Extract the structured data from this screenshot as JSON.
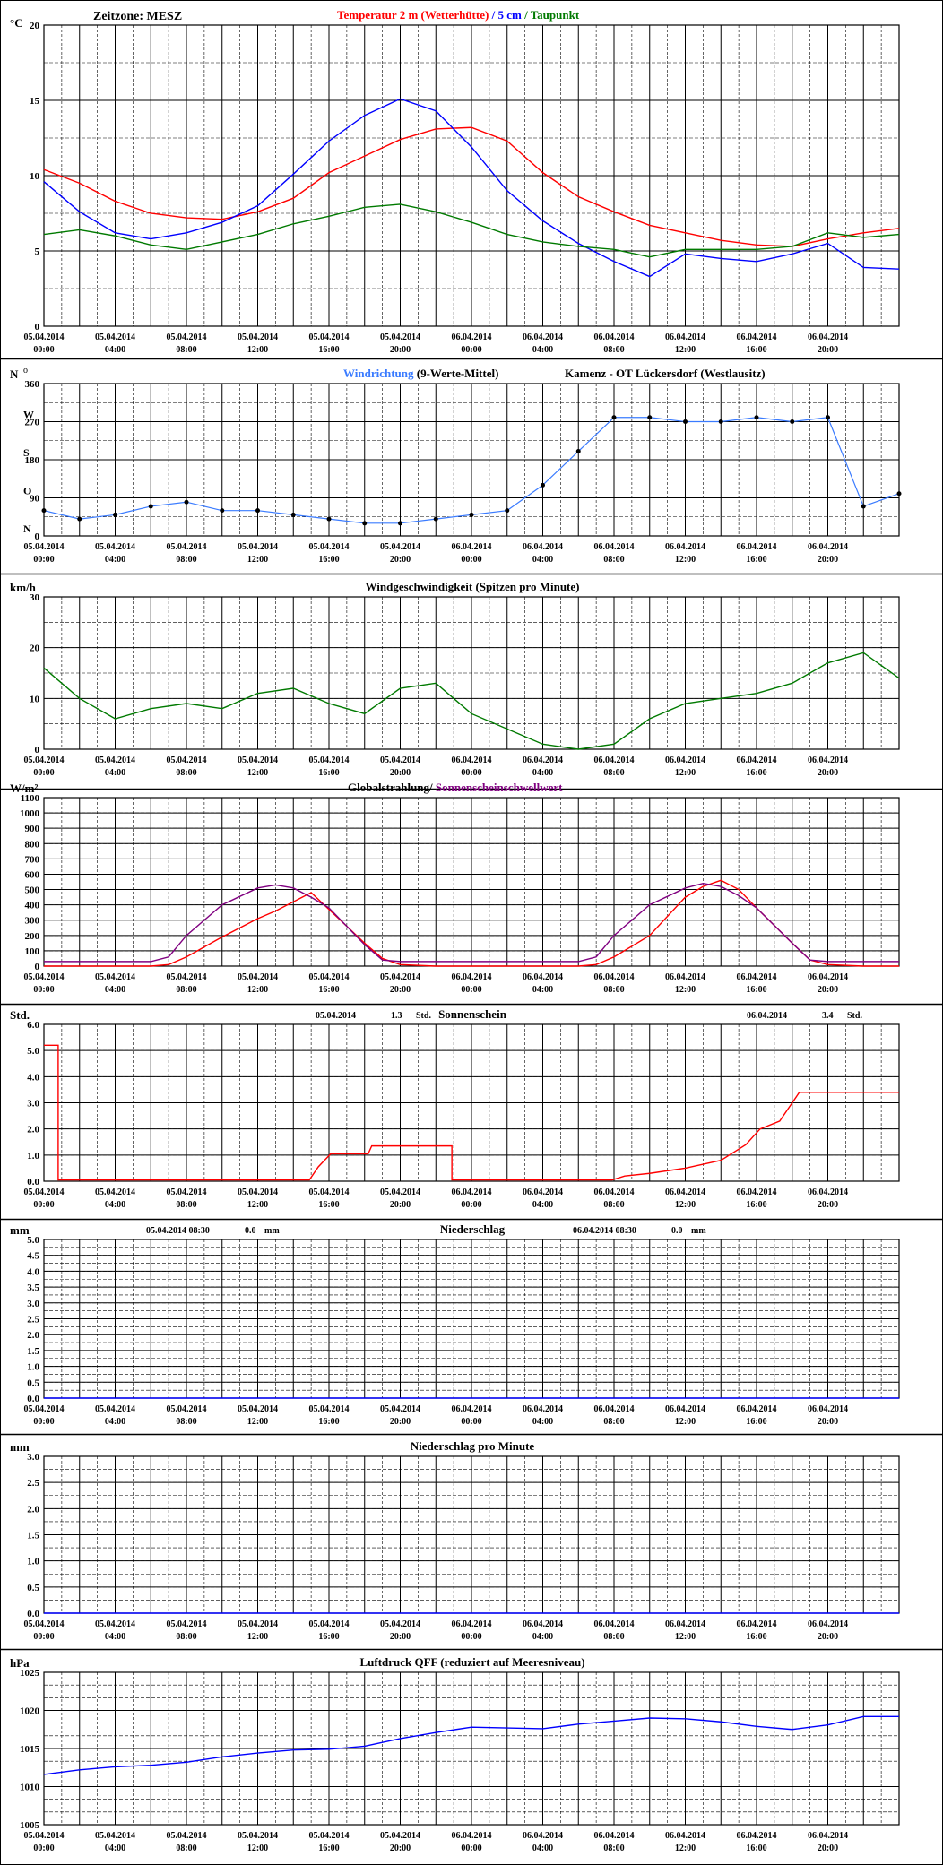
{
  "timezone_label": "Zeitzone: MESZ",
  "x_ticks": [
    {
      "date": "05.04.2014",
      "time": "00:00"
    },
    {
      "date": "05.04.2014",
      "time": "04:00"
    },
    {
      "date": "05.04.2014",
      "time": "08:00"
    },
    {
      "date": "05.04.2014",
      "time": "12:00"
    },
    {
      "date": "05.04.2014",
      "time": "16:00"
    },
    {
      "date": "05.04.2014",
      "time": "20:00"
    },
    {
      "date": "06.04.2014",
      "time": "00:00"
    },
    {
      "date": "06.04.2014",
      "time": "04:00"
    },
    {
      "date": "06.04.2014",
      "time": "08:00"
    },
    {
      "date": "06.04.2014",
      "time": "12:00"
    },
    {
      "date": "06.04.2014",
      "time": "16:00"
    },
    {
      "date": "06.04.2014",
      "time": "20:00"
    }
  ],
  "colors": {
    "red": "#ff0000",
    "blue": "#0000ff",
    "lightblue": "#3a7bff",
    "green": "#007a00",
    "black": "#000000",
    "purple": "#800080",
    "grid": "#000000"
  },
  "chart_data": [
    {
      "id": "temperature",
      "type": "line",
      "unit_label": "°C",
      "title_parts": [
        {
          "text": "Temperatur 2 m (Wetterhütte)",
          "color": "#ff0000"
        },
        {
          "text": "  /  ",
          "color": "#0000ff"
        },
        {
          "text": "5 cm",
          "color": "#0000ff"
        },
        {
          "text": " / ",
          "color": "#007a00"
        },
        {
          "text": "Taupunkt",
          "color": "#007a00"
        }
      ],
      "ylim": [
        0,
        20
      ],
      "y_ticks": [
        0,
        5,
        10,
        15,
        20
      ],
      "x_hours": [
        0,
        2,
        4,
        6,
        8,
        10,
        12,
        14,
        16,
        18,
        20,
        22,
        24,
        26,
        28,
        30,
        32,
        34,
        36,
        38,
        40,
        42,
        44,
        46,
        48
      ],
      "series": [
        {
          "name": "Temperatur 2 m (Wetterhütte)",
          "color": "#ff0000",
          "values": [
            10.4,
            9.5,
            8.3,
            7.5,
            7.2,
            7.1,
            7.6,
            8.5,
            10.2,
            11.3,
            12.4,
            13.1,
            13.2,
            12.3,
            10.2,
            8.6,
            7.6,
            6.7,
            6.2,
            5.7,
            5.4,
            5.3,
            5.8,
            6.2,
            6.5
          ]
        },
        {
          "name": "5 cm",
          "color": "#0000ff",
          "values": [
            9.6,
            7.6,
            6.2,
            5.8,
            6.2,
            6.9,
            8.0,
            10.1,
            12.3,
            14.0,
            15.1,
            14.3,
            11.9,
            9.0,
            7.0,
            5.5,
            4.3,
            3.3,
            4.8,
            4.5,
            4.3,
            4.8,
            5.5,
            3.9,
            3.8
          ]
        },
        {
          "name": "Taupunkt",
          "color": "#007a00",
          "values": [
            6.1,
            6.4,
            6.0,
            5.4,
            5.1,
            5.6,
            6.1,
            6.8,
            7.3,
            7.9,
            8.1,
            7.6,
            6.9,
            6.1,
            5.6,
            5.3,
            5.1,
            4.6,
            5.1,
            5.1,
            5.1,
            5.3,
            6.2,
            5.9,
            6.1
          ]
        }
      ]
    },
    {
      "id": "wind_direction",
      "type": "scatter",
      "unit_label": "N",
      "deg_symbol": "o",
      "title_parts": [
        {
          "text": "Windrichtung",
          "color": "#3a7bff"
        },
        {
          "text": " (9-Werte-Mittel)",
          "color": "#000000"
        }
      ],
      "title_right": "Kamenz - OT Lückersdorf (Westlausitz)",
      "ylim": [
        0,
        360
      ],
      "y_ticks": [
        0,
        90,
        180,
        270,
        360
      ],
      "direction_letters": [
        {
          "value": 0,
          "letter": "N"
        },
        {
          "value": 90,
          "letter": "O"
        },
        {
          "value": 180,
          "letter": "S"
        },
        {
          "value": 270,
          "letter": "W"
        }
      ],
      "x_hours": [
        0,
        2,
        4,
        6,
        8,
        10,
        12,
        14,
        16,
        18,
        20,
        22,
        24,
        26,
        28,
        30,
        32,
        34,
        36,
        38,
        40,
        42,
        44,
        46,
        48
      ],
      "series": [
        {
          "name": "9-Werte-Mittel",
          "color": "#000000",
          "values": [
            60,
            40,
            50,
            70,
            80,
            60,
            60,
            50,
            40,
            30,
            30,
            40,
            50,
            60,
            120,
            200,
            280,
            280,
            270,
            270,
            280,
            270,
            280,
            70,
            100
          ]
        }
      ]
    },
    {
      "id": "wind_speed",
      "type": "line",
      "unit_label": "km/h",
      "title": "Windgeschwindigkeit (Spitzen pro Minute)",
      "ylim": [
        0,
        30
      ],
      "y_ticks": [
        0,
        10,
        20,
        30
      ],
      "x_hours": [
        0,
        2,
        4,
        6,
        8,
        10,
        12,
        14,
        16,
        18,
        20,
        22,
        24,
        26,
        28,
        30,
        32,
        34,
        36,
        38,
        40,
        42,
        44,
        46,
        48
      ],
      "series": [
        {
          "name": "Windgeschwindigkeit",
          "color": "#007a00",
          "values": [
            16,
            10,
            6,
            8,
            9,
            8,
            11,
            12,
            9,
            7,
            12,
            13,
            7,
            4,
            1,
            0,
            1,
            6,
            9,
            10,
            11,
            13,
            17,
            19,
            14
          ]
        }
      ]
    },
    {
      "id": "radiation",
      "type": "line",
      "unit_label": "W/m²",
      "title_parts": [
        {
          "text": "Globalstrahlung",
          "color": "#000000"
        },
        {
          "text": "/ ",
          "color": "#000000"
        },
        {
          "text": "Sonnenscheinschwellwert",
          "color": "#800080"
        }
      ],
      "ylim": [
        0,
        1100
      ],
      "y_ticks": [
        0,
        100,
        200,
        300,
        400,
        500,
        600,
        700,
        800,
        900,
        1000,
        1100
      ],
      "x_hours": [
        0,
        2,
        4,
        6,
        7,
        8,
        10,
        12,
        13,
        14,
        15,
        16,
        18,
        19,
        20,
        22,
        24,
        26,
        28,
        30,
        31,
        32,
        34,
        36,
        37,
        38,
        39,
        40,
        42,
        43,
        44,
        46,
        48
      ],
      "series": [
        {
          "name": "Globalstrahlung",
          "color": "#ff0000",
          "values": [
            0,
            0,
            0,
            0,
            10,
            60,
            190,
            310,
            360,
            420,
            480,
            370,
            150,
            50,
            10,
            0,
            0,
            0,
            0,
            0,
            10,
            60,
            200,
            450,
            520,
            560,
            500,
            380,
            150,
            40,
            10,
            0,
            0
          ]
        },
        {
          "name": "Sonnenscheinschwellwert",
          "color": "#800080",
          "values": [
            30,
            30,
            30,
            30,
            60,
            200,
            400,
            510,
            530,
            510,
            450,
            380,
            140,
            40,
            30,
            30,
            30,
            30,
            30,
            30,
            60,
            200,
            400,
            510,
            540,
            520,
            460,
            380,
            150,
            40,
            30,
            30,
            30
          ]
        }
      ]
    },
    {
      "id": "sunshine",
      "type": "line",
      "unit_label": "Std.",
      "title": "Sonnenschein",
      "summaries": [
        {
          "date": "05.04.2014",
          "value": "1.3",
          "unit": "Std."
        },
        {
          "date": "06.04.2014",
          "value": "3.4",
          "unit": "Std."
        }
      ],
      "ylim": [
        0,
        6
      ],
      "y_ticks": [
        "0.0",
        "1.0",
        "2.0",
        "3.0",
        "4.0",
        "5.0",
        "6.0"
      ],
      "x_hours": [
        0,
        0.8,
        0.8,
        14.9,
        15.4,
        16.1,
        18.2,
        18.4,
        22.9,
        22.9,
        31.9,
        32.6,
        34,
        36,
        38,
        39.4,
        40.2,
        41.3,
        42.4,
        48
      ],
      "series": [
        {
          "name": "Sonnenschein",
          "color": "#ff0000",
          "values": [
            5.2,
            5.2,
            0.05,
            0.05,
            0.55,
            1.05,
            1.05,
            1.35,
            1.35,
            0.05,
            0.05,
            0.2,
            0.3,
            0.5,
            0.8,
            1.4,
            2.0,
            2.3,
            3.4,
            3.4
          ]
        }
      ]
    },
    {
      "id": "precipitation",
      "type": "line",
      "unit_label": "mm",
      "title": "Niederschlag",
      "summaries": [
        {
          "date": "05.04.2014 08:30",
          "value": "0.0",
          "unit": "mm"
        },
        {
          "date": "06.04.2014 08:30",
          "value": "0.0",
          "unit": "mm"
        }
      ],
      "ylim": [
        0,
        5
      ],
      "y_ticks": [
        "0.0",
        "0.5",
        "1.0",
        "1.5",
        "2.0",
        "2.5",
        "3.0",
        "3.5",
        "4.0",
        "4.5",
        "5.0"
      ],
      "x_hours": [
        0,
        48
      ],
      "series": [
        {
          "name": "Niederschlag",
          "color": "#0000ff",
          "values": [
            0,
            0
          ]
        }
      ]
    },
    {
      "id": "precipitation_minute",
      "type": "line",
      "unit_label": "mm",
      "title": "Niederschlag pro Minute",
      "ylim": [
        0,
        3
      ],
      "y_ticks": [
        "0.0",
        "0.5",
        "1.0",
        "1.5",
        "2.0",
        "2.5",
        "3.0"
      ],
      "x_hours": [
        0,
        48
      ],
      "series": [
        {
          "name": "Niederschlag pro Minute",
          "color": "#0000ff",
          "values": [
            0,
            0
          ]
        }
      ]
    },
    {
      "id": "pressure",
      "type": "line",
      "unit_label": "hPa",
      "title": "Luftdruck QFF (reduziert auf Meeresniveau)",
      "ylim": [
        1005,
        1025
      ],
      "y_ticks": [
        1005,
        1010,
        1015,
        1020,
        1025
      ],
      "x_hours": [
        0,
        2,
        4,
        6,
        8,
        10,
        12,
        14,
        16,
        18,
        20,
        22,
        24,
        26,
        28,
        30,
        32,
        34,
        36,
        38,
        40,
        42,
        44,
        46,
        48
      ],
      "series": [
        {
          "name": "Luftdruck QFF",
          "color": "#0000ff",
          "values": [
            1011.6,
            1012.2,
            1012.6,
            1012.8,
            1013.2,
            1013.9,
            1014.4,
            1014.8,
            1014.9,
            1015.3,
            1016.3,
            1017.1,
            1017.8,
            1017.7,
            1017.6,
            1018.2,
            1018.6,
            1019.0,
            1018.9,
            1018.5,
            1017.9,
            1017.5,
            1018.1,
            1019.2,
            1019.2
          ]
        }
      ]
    }
  ]
}
